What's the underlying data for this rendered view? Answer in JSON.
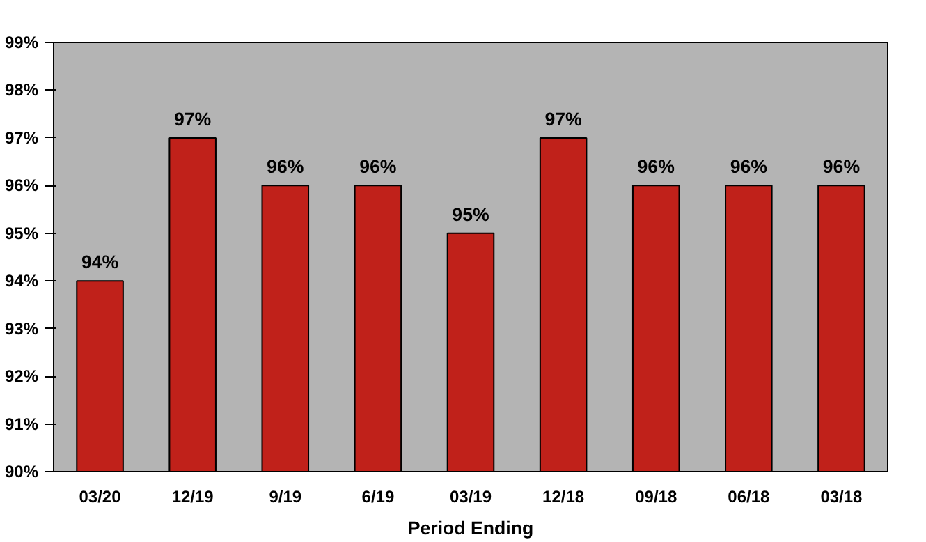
{
  "chart_data": {
    "type": "bar",
    "xlabel": "Period Ending",
    "categories": [
      "03/20",
      "12/19",
      "9/19",
      "6/19",
      "03/19",
      "12/18",
      "09/18",
      "06/18",
      "03/18"
    ],
    "values": [
      94,
      97,
      96,
      96,
      95,
      97,
      96,
      96,
      96
    ],
    "value_labels": [
      "94%",
      "97%",
      "96%",
      "96%",
      "95%",
      "97%",
      "96%",
      "96%",
      "96%"
    ],
    "color": "#c0211a",
    "ylim": [
      90,
      99
    ],
    "yticks": [
      {
        "value": 90,
        "label": "90%"
      },
      {
        "value": 91,
        "label": "91%"
      },
      {
        "value": 92,
        "label": "92%"
      },
      {
        "value": 93,
        "label": "93%"
      },
      {
        "value": 94,
        "label": "94%"
      },
      {
        "value": 95,
        "label": "95%"
      },
      {
        "value": 96,
        "label": "96%"
      },
      {
        "value": 97,
        "label": "97%"
      },
      {
        "value": 98,
        "label": "98%"
      },
      {
        "value": 99,
        "label": "99%"
      }
    ],
    "grid": false
  }
}
